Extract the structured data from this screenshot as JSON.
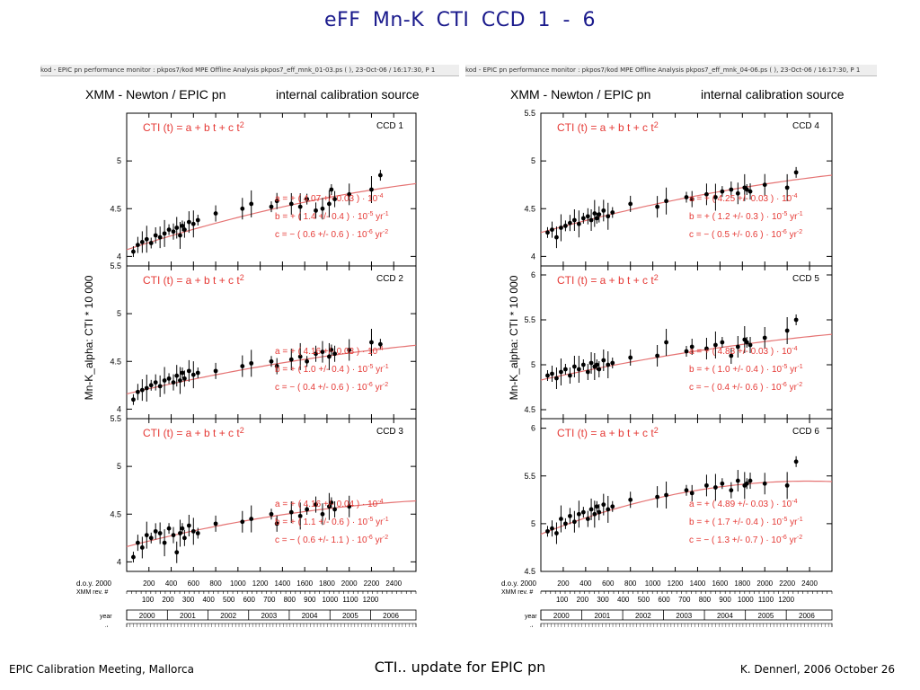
{
  "slide": {
    "title": "eFF   Mn-K   CTI   CCD 1 - 6",
    "footer_left": "EPIC Calibration Meeting, Mallorca",
    "footer_center": "CTI.. update for EPIC pn",
    "footer_right": "K. Dennerl, 2006 October 26"
  },
  "panels": [
    {
      "header_strip": "kod - EPIC pn performance monitor : pkpos7/kod        MPE  Offline Analysis  pkpos7_eff_mnk_01-03.ps ( ), 23-Oct-06 / 16:17:30, P   1",
      "title_left": "XMM - Newton  /  EPIC pn",
      "title_right": "internal calibration source",
      "ylabel": "Mn-K_alpha:  CTI * 10 000",
      "xaxis": {
        "doy_label": "d.o.y. 2000",
        "doy_ticks": [
          "200",
          "400",
          "600",
          "800",
          "1000",
          "1200",
          "1400",
          "1600",
          "1800",
          "2000",
          "2200",
          "2400"
        ],
        "rev_label": "XMM rev. #",
        "rev_ticks": [
          "100",
          "200",
          "300",
          "400",
          "500",
          "600",
          "700",
          "800",
          "900",
          "1000",
          "1100",
          "1200"
        ],
        "year_label": "year",
        "years": [
          "2000",
          "2001",
          "2002",
          "2003",
          "2004",
          "2005",
          "2006"
        ],
        "month_label": "month"
      },
      "subplots": [
        {
          "ccd": "CCD  1",
          "formula": "CTI (t)  =  a + b t + c t",
          "ylim": [
            3.9,
            5.5
          ],
          "yticks": [
            "4",
            "4.5",
            "5"
          ],
          "fit": [
            4.07,
            1.4,
            -0.6
          ],
          "a": "a  =  + ( 4.07 +/- 0.03 ) · 10",
          "a_exp": "-4",
          "b": "b  =  + ( 1.4 +/- 0.4 ) · 10",
          "b_exp": "-5",
          "b_unit": " yr",
          "b_uexp": "-1",
          "c": "c  =  − ( 0.6 +/- 0.6 ) · 10",
          "c_exp": "-6",
          "c_unit": " yr",
          "c_uexp": "-2"
        },
        {
          "ccd": "CCD  2",
          "formula": "CTI (t)  =  a + b t + c t",
          "ylim": [
            3.9,
            5.5
          ],
          "yticks": [
            "4",
            "4.5",
            "5",
            "5.5"
          ],
          "fit": [
            4.16,
            1.0,
            -0.4
          ],
          "a": "a  =  + ( 4.16 +/- 0.03 ) · 10",
          "a_exp": "-4",
          "b": "b  =  + ( 1.0 +/- 0.4 ) · 10",
          "b_exp": "-5",
          "b_unit": " yr",
          "b_uexp": "-1",
          "c": "c  =  − ( 0.4 +/- 0.6 ) · 10",
          "c_exp": "-6",
          "c_unit": " yr",
          "c_uexp": "-2"
        },
        {
          "ccd": "CCD  3",
          "formula": "CTI (t)  =  a + b t + c t",
          "ylim": [
            3.9,
            5.5
          ],
          "yticks": [
            "4",
            "4.5",
            "5",
            "5.5"
          ],
          "fit": [
            4.16,
            1.1,
            -0.6
          ],
          "a": "a  =  + ( 4.16 +/- 0.04 ) · 10",
          "a_exp": "-4",
          "b": "b  =  + ( 1.1 +/- 0.6 ) · 10",
          "b_exp": "-5",
          "b_unit": " yr",
          "b_uexp": "-1",
          "c": "c  =  − ( 0.6 +/- 1.1 ) · 10",
          "c_exp": "-6",
          "c_unit": " yr",
          "c_uexp": "-2"
        }
      ]
    },
    {
      "header_strip": "kod - EPIC pn performance monitor : pkpos7/kod        MPE  Offline Analysis    pkpos7_eff_mnk_04-06.ps ( ), 23-Oct-06 / 16:17:30, P   1",
      "title_left": "XMM - Newton  /  EPIC pn",
      "title_right": "internal calibration source",
      "ylabel": "Mn-K_alpha:  CTI * 10 000",
      "xaxis": {
        "doy_label": "d.o.y. 2000",
        "doy_ticks": [
          "200",
          "400",
          "600",
          "800",
          "1000",
          "1200",
          "1400",
          "1600",
          "1800",
          "2000",
          "2200",
          "2400"
        ],
        "rev_label": "XMM rev. #",
        "rev_ticks": [
          "100",
          "200",
          "300",
          "400",
          "500",
          "600",
          "700",
          "800",
          "900",
          "1000",
          "1100",
          "1200"
        ],
        "year_label": "year",
        "years": [
          "2000",
          "2001",
          "2002",
          "2003",
          "2004",
          "2005",
          "2006"
        ],
        "month_label": "month"
      },
      "subplots": [
        {
          "ccd": "CCD  4",
          "formula": "CTI (t)  =  a + b t + c t",
          "ylim": [
            3.9,
            5.5
          ],
          "yticks": [
            "4",
            "4.5",
            "5",
            "5.5"
          ],
          "fit": [
            4.25,
            1.2,
            -0.5
          ],
          "a": "a  =  + ( 4.25 +/- 0.03 ) · 10",
          "a_exp": "-4",
          "b": "b  =  + ( 1.2 +/- 0.3 ) · 10",
          "b_exp": "-5",
          "b_unit": " yr",
          "b_uexp": "-1",
          "c": "c  =  − ( 0.5 +/- 0.6 ) · 10",
          "c_exp": "-6",
          "c_unit": " yr",
          "c_uexp": "-2"
        },
        {
          "ccd": "CCD  5",
          "formula": "CTI (t)  =  a + b t + c t",
          "ylim": [
            4.4,
            6.1
          ],
          "yticks": [
            "4.5",
            "5",
            "5.5",
            "6"
          ],
          "fit": [
            4.83,
            1.0,
            -0.4
          ],
          "a": "a  =  + ( 4.83 +/- 0.03 ) · 10",
          "a_exp": "-4",
          "b": "b  =  + ( 1.0 +/- 0.4 ) · 10",
          "b_exp": "-5",
          "b_unit": " yr",
          "b_uexp": "-1",
          "c": "c  =  − ( 0.4 +/- 0.6 ) · 10",
          "c_exp": "-6",
          "c_unit": " yr",
          "c_uexp": "-2"
        },
        {
          "ccd": "CCD  6",
          "formula": "CTI (t)  =  a + b t + c t",
          "ylim": [
            4.5,
            6.1
          ],
          "yticks": [
            "4.5",
            "5",
            "5.5",
            "6"
          ],
          "fit": [
            4.89,
            1.7,
            -1.3
          ],
          "a": "a  =  + ( 4.89 +/- 0.03 ) · 10",
          "a_exp": "-4",
          "b": "b  =  + ( 1.7 +/- 0.4 ) · 10",
          "b_exp": "-5",
          "b_unit": " yr",
          "b_uexp": "-1",
          "c": "c  =  − ( 1.3 +/- 0.7 ) · 10",
          "c_exp": "-6",
          "c_unit": " yr",
          "c_uexp": "-2"
        }
      ]
    }
  ],
  "chart_data": [
    {
      "type": "scatter",
      "title": "CCD 1",
      "xlabel": "d.o.y. 2000",
      "ylabel": "Mn-K_alpha:  CTI * 10 000",
      "xlim": [
        0,
        2600
      ],
      "ylim": [
        3.9,
        5.5
      ],
      "x": [
        60,
        100,
        140,
        180,
        220,
        260,
        300,
        340,
        380,
        420,
        450,
        480,
        500,
        520,
        560,
        600,
        640,
        800,
        1040,
        1120,
        1300,
        1350,
        1480,
        1560,
        1620,
        1700,
        1760,
        1820,
        1840,
        1870,
        2000,
        2200,
        2280
      ],
      "y": [
        4.05,
        4.12,
        4.15,
        4.18,
        4.14,
        4.22,
        4.2,
        4.24,
        4.28,
        4.26,
        4.3,
        4.22,
        4.32,
        4.28,
        4.36,
        4.34,
        4.38,
        4.45,
        4.5,
        4.55,
        4.52,
        4.58,
        4.55,
        4.52,
        4.6,
        4.48,
        4.5,
        4.55,
        4.7,
        4.6,
        4.65,
        4.7,
        4.85
      ],
      "series": [
        {
          "name": "fit",
          "a": 4.07,
          "b": 1.4,
          "c": -0.6
        }
      ]
    },
    {
      "type": "scatter",
      "title": "CCD 2",
      "xlabel": "d.o.y. 2000",
      "ylabel": "Mn-K_alpha:  CTI * 10 000",
      "xlim": [
        0,
        2600
      ],
      "ylim": [
        3.9,
        5.5
      ],
      "x": [
        60,
        100,
        140,
        180,
        220,
        260,
        300,
        340,
        380,
        420,
        450,
        480,
        500,
        520,
        560,
        600,
        640,
        800,
        1040,
        1120,
        1300,
        1350,
        1480,
        1560,
        1620,
        1700,
        1760,
        1820,
        1840,
        1870,
        2000,
        2200,
        2280
      ],
      "y": [
        4.1,
        4.18,
        4.2,
        4.22,
        4.25,
        4.28,
        4.24,
        4.3,
        4.32,
        4.28,
        4.35,
        4.3,
        4.38,
        4.32,
        4.4,
        4.36,
        4.38,
        4.4,
        4.45,
        4.48,
        4.5,
        4.45,
        4.52,
        4.55,
        4.5,
        4.58,
        4.6,
        4.55,
        4.62,
        4.58,
        4.62,
        4.7,
        4.68
      ],
      "series": [
        {
          "name": "fit",
          "a": 4.16,
          "b": 1.0,
          "c": -0.4
        }
      ]
    },
    {
      "type": "scatter",
      "title": "CCD 3",
      "xlabel": "d.o.y. 2000",
      "ylabel": "Mn-K_alpha:  CTI * 10 000",
      "xlim": [
        0,
        2600
      ],
      "ylim": [
        3.9,
        5.5
      ],
      "x": [
        60,
        100,
        140,
        180,
        220,
        260,
        300,
        340,
        380,
        420,
        450,
        480,
        500,
        520,
        560,
        600,
        640,
        800,
        1040,
        1120,
        1300,
        1350,
        1480,
        1560,
        1620,
        1700,
        1760,
        1820,
        1840,
        1870,
        2000
      ],
      "y": [
        4.05,
        4.2,
        4.15,
        4.28,
        4.25,
        4.32,
        4.3,
        4.2,
        4.35,
        4.28,
        4.1,
        4.3,
        4.35,
        4.25,
        4.38,
        4.32,
        4.3,
        4.4,
        4.42,
        4.45,
        4.5,
        4.4,
        4.52,
        4.48,
        4.55,
        4.6,
        4.5,
        4.58,
        4.62,
        4.55,
        4.58
      ],
      "series": [
        {
          "name": "fit",
          "a": 4.16,
          "b": 1.1,
          "c": -0.6
        }
      ]
    },
    {
      "type": "scatter",
      "title": "CCD 4",
      "xlabel": "d.o.y. 2000",
      "ylabel": "Mn-K_alpha:  CTI * 10 000",
      "xlim": [
        0,
        2600
      ],
      "ylim": [
        3.9,
        5.5
      ],
      "x": [
        60,
        100,
        140,
        180,
        220,
        260,
        300,
        340,
        380,
        420,
        450,
        480,
        500,
        520,
        560,
        600,
        640,
        800,
        1040,
        1120,
        1300,
        1350,
        1480,
        1560,
        1620,
        1700,
        1760,
        1820,
        1840,
        1870,
        2000,
        2200,
        2280
      ],
      "y": [
        4.25,
        4.28,
        4.2,
        4.3,
        4.32,
        4.35,
        4.38,
        4.34,
        4.4,
        4.42,
        4.38,
        4.45,
        4.4,
        4.44,
        4.48,
        4.42,
        4.46,
        4.55,
        4.52,
        4.58,
        4.62,
        4.6,
        4.65,
        4.62,
        4.68,
        4.7,
        4.66,
        4.72,
        4.7,
        4.68,
        4.75,
        4.72,
        4.88
      ],
      "series": [
        {
          "name": "fit",
          "a": 4.25,
          "b": 1.2,
          "c": -0.5
        }
      ]
    },
    {
      "type": "scatter",
      "title": "CCD 5",
      "xlabel": "d.o.y. 2000",
      "ylabel": "Mn-K_alpha:  CTI * 10 000",
      "xlim": [
        0,
        2600
      ],
      "ylim": [
        4.4,
        6.1
      ],
      "x": [
        60,
        100,
        140,
        180,
        220,
        260,
        300,
        340,
        380,
        420,
        450,
        480,
        500,
        520,
        560,
        600,
        640,
        800,
        1040,
        1120,
        1300,
        1350,
        1480,
        1560,
        1620,
        1700,
        1760,
        1820,
        1840,
        1870,
        2000,
        2200,
        2280
      ],
      "y": [
        4.88,
        4.9,
        4.85,
        4.92,
        4.95,
        4.88,
        4.98,
        4.95,
        5.0,
        4.92,
        5.02,
        4.98,
        5.0,
        4.95,
        5.05,
        5.0,
        5.02,
        5.08,
        5.1,
        5.25,
        5.15,
        5.2,
        5.18,
        5.22,
        5.25,
        5.1,
        5.2,
        5.28,
        5.25,
        5.22,
        5.3,
        5.38,
        5.5
      ],
      "series": [
        {
          "name": "fit",
          "a": 4.83,
          "b": 1.0,
          "c": -0.4
        }
      ]
    },
    {
      "type": "scatter",
      "title": "CCD 6",
      "xlabel": "d.o.y. 2000",
      "ylabel": "Mn-K_alpha:  CTI * 10 000",
      "xlim": [
        0,
        2600
      ],
      "ylim": [
        4.5,
        6.1
      ],
      "x": [
        60,
        100,
        140,
        180,
        220,
        260,
        300,
        340,
        380,
        420,
        450,
        480,
        500,
        520,
        560,
        600,
        640,
        800,
        1040,
        1120,
        1300,
        1350,
        1480,
        1560,
        1620,
        1700,
        1760,
        1820,
        1840,
        1870,
        2000,
        2200,
        2280
      ],
      "y": [
        4.92,
        4.95,
        4.9,
        5.05,
        5.0,
        5.08,
        5.02,
        5.1,
        5.12,
        5.05,
        5.15,
        5.1,
        5.18,
        5.12,
        5.2,
        5.15,
        5.18,
        5.25,
        5.28,
        5.3,
        5.35,
        5.32,
        5.4,
        5.38,
        5.42,
        5.35,
        5.45,
        5.4,
        5.42,
        5.45,
        5.42,
        5.4,
        5.65
      ],
      "series": [
        {
          "name": "fit",
          "a": 4.89,
          "b": 1.7,
          "c": -1.3
        }
      ]
    }
  ]
}
